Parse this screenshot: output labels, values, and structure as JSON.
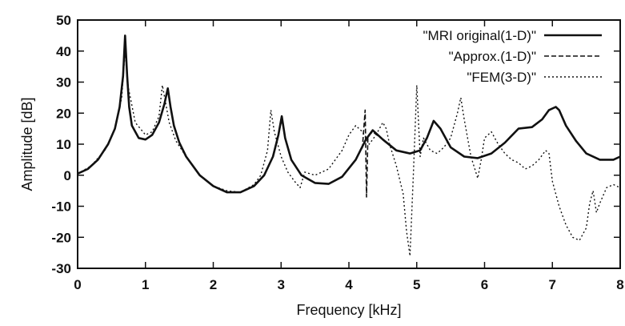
{
  "chart_data": {
    "type": "line",
    "title": "",
    "xlabel": "Frequency [kHz]",
    "ylabel": "Amplitude [dB]",
    "xlim": [
      0,
      8
    ],
    "ylim": [
      -30,
      50
    ],
    "xticks": [
      0,
      1,
      2,
      3,
      4,
      5,
      6,
      7,
      8
    ],
    "yticks": [
      -30,
      -20,
      -10,
      0,
      10,
      20,
      30,
      40,
      50
    ],
    "grid": false,
    "legend_position": "top-right",
    "series": [
      {
        "name": "\"MRI original(1-D)\"",
        "style": "solid",
        "color": "#111111",
        "x": [
          0,
          0.15,
          0.3,
          0.45,
          0.55,
          0.62,
          0.67,
          0.7,
          0.73,
          0.76,
          0.8,
          0.9,
          1.0,
          1.1,
          1.2,
          1.28,
          1.33,
          1.37,
          1.42,
          1.5,
          1.6,
          1.8,
          2.0,
          2.2,
          2.4,
          2.6,
          2.75,
          2.88,
          2.96,
          3.01,
          3.06,
          3.15,
          3.3,
          3.5,
          3.7,
          3.9,
          4.1,
          4.25,
          4.35,
          4.5,
          4.7,
          4.9,
          5.05,
          5.15,
          5.25,
          5.35,
          5.5,
          5.7,
          5.9,
          6.1,
          6.3,
          6.5,
          6.7,
          6.85,
          6.95,
          7.05,
          7.1,
          7.2,
          7.35,
          7.5,
          7.7,
          7.9,
          8.0
        ],
        "y": [
          0.5,
          2,
          5,
          10,
          15,
          22,
          32,
          45,
          32,
          22,
          16,
          12,
          11.5,
          13,
          17,
          23,
          28,
          22,
          16,
          10.5,
          6,
          0,
          -3.5,
          -5.5,
          -5.5,
          -3.5,
          0,
          6,
          13,
          19,
          12,
          5,
          0,
          -2.5,
          -2.8,
          -0.5,
          5,
          11.5,
          14.5,
          11.5,
          8,
          7,
          8,
          12,
          17.5,
          15,
          9,
          6,
          5.5,
          7,
          10.5,
          15,
          15.5,
          18,
          21,
          22,
          21,
          16,
          11,
          7,
          5,
          5,
          6
        ]
      },
      {
        "name": "\"Approx.(1-D)\"",
        "style": "dashed",
        "color": "#111111",
        "x": [
          0,
          0.15,
          0.3,
          0.45,
          0.55,
          0.62,
          0.67,
          0.7,
          0.73,
          0.76,
          0.8,
          0.9,
          1.0,
          1.1,
          1.2,
          1.28,
          1.33,
          1.37,
          1.42,
          1.5,
          1.6,
          1.8,
          2.0,
          2.2,
          2.4,
          2.6,
          2.75,
          2.88,
          2.96,
          3.01,
          3.06,
          3.15,
          3.3,
          3.5,
          3.7,
          3.9,
          4.1,
          4.2,
          4.24,
          4.26,
          4.28,
          4.3,
          4.35,
          4.5,
          4.7,
          4.9,
          5.05,
          5.15,
          5.25,
          5.35,
          5.5,
          5.7,
          5.9,
          6.1,
          6.3,
          6.5,
          6.7,
          6.85,
          6.95,
          7.05,
          7.1,
          7.2,
          7.35,
          7.5,
          7.7,
          7.9,
          8.0
        ],
        "y": [
          0.5,
          2,
          5,
          10,
          15,
          22,
          32,
          44,
          32,
          22,
          16,
          12,
          11.5,
          13,
          17,
          23,
          28,
          22,
          16,
          10.5,
          6,
          0,
          -3.5,
          -5.5,
          -5.5,
          -3.5,
          0,
          6,
          13,
          18,
          12,
          5,
          0,
          -2.5,
          -2.8,
          -0.5,
          5,
          9,
          21,
          -7,
          12,
          13,
          14,
          11.5,
          8,
          7,
          8,
          12,
          17.5,
          15,
          9,
          6,
          5.5,
          7,
          10.5,
          15,
          15.5,
          18,
          21,
          22,
          21,
          16,
          11,
          7,
          5,
          5,
          6
        ]
      },
      {
        "name": "\"FEM(3-D)\"",
        "style": "dotted",
        "color": "#111111",
        "x": [
          0,
          0.2,
          0.4,
          0.55,
          0.65,
          0.7,
          0.75,
          0.85,
          1.0,
          1.1,
          1.2,
          1.25,
          1.3,
          1.35,
          1.45,
          1.6,
          1.8,
          2.0,
          2.2,
          2.4,
          2.6,
          2.7,
          2.8,
          2.85,
          2.9,
          3.0,
          3.1,
          3.2,
          3.28,
          3.35,
          3.5,
          3.7,
          3.9,
          4.0,
          4.1,
          4.2,
          4.3,
          4.4,
          4.5,
          4.55,
          4.6,
          4.7,
          4.8,
          4.85,
          4.9,
          4.95,
          5.0,
          5.05,
          5.1,
          5.2,
          5.3,
          5.4,
          5.5,
          5.6,
          5.65,
          5.7,
          5.8,
          5.9,
          5.95,
          6.0,
          6.1,
          6.2,
          6.3,
          6.4,
          6.5,
          6.6,
          6.7,
          6.8,
          6.9,
          6.95,
          7.0,
          7.1,
          7.2,
          7.3,
          7.4,
          7.5,
          7.55,
          7.6,
          7.65,
          7.7,
          7.8,
          7.9,
          8.0
        ],
        "y": [
          0.5,
          3,
          8,
          15,
          25,
          40,
          28,
          17,
          13,
          14,
          19,
          29,
          23,
          17,
          11,
          6,
          0,
          -3.5,
          -5,
          -5.5,
          -3,
          0,
          8,
          21,
          14,
          6,
          1,
          -2,
          -4,
          1,
          0,
          2,
          8,
          13,
          16,
          14,
          10,
          13,
          17,
          15,
          10,
          3,
          -6,
          -18,
          -26,
          0,
          29,
          6,
          12,
          8,
          7,
          9,
          12,
          20,
          25,
          18,
          6,
          -1,
          5,
          12,
          14,
          10,
          7,
          5,
          4,
          2,
          3,
          5,
          8,
          7,
          -2,
          -10,
          -16,
          -20,
          -21,
          -17,
          -9,
          -5,
          -12,
          -9,
          -4,
          -3,
          -4
        ]
      }
    ]
  }
}
